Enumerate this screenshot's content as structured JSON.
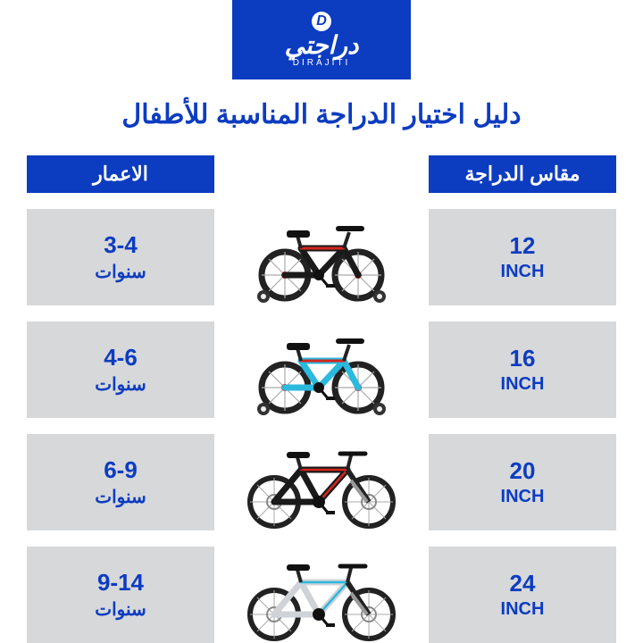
{
  "brand": {
    "logo_letter": "D",
    "name_ar": "دراجتي",
    "name_en": "DIRAJITI",
    "bg_color": "#0c3cc0"
  },
  "title": "دليل اختيار الدراجة المناسبة للأطفال",
  "headers": {
    "ages": "الاعمار",
    "size": "مقاس الدراجة"
  },
  "rows": [
    {
      "age_range": "3-4",
      "age_unit": "سنوات",
      "size_value": "12",
      "size_unit": "INCH",
      "bike": {
        "frame_color": "#1a1a1a",
        "accent_color": "#d4261d",
        "style": "training"
      }
    },
    {
      "age_range": "4-6",
      "age_unit": "سنوات",
      "size_value": "16",
      "size_unit": "INCH",
      "bike": {
        "frame_color": "#2bb9de",
        "accent_color": "#d4261d",
        "style": "training"
      }
    },
    {
      "age_range": "6-9",
      "age_unit": "سنوات",
      "size_value": "20",
      "size_unit": "INCH",
      "bike": {
        "frame_color": "#1a1a1a",
        "accent_color": "#d4261d",
        "style": "mtb"
      }
    },
    {
      "age_range": "9-14",
      "age_unit": "سنوات",
      "size_value": "24",
      "size_unit": "INCH",
      "bike": {
        "frame_color": "#cfd2d6",
        "accent_color": "#2bb9de",
        "style": "mtb"
      }
    }
  ],
  "colors": {
    "primary": "#0c3cc0",
    "cell_bg": "#d7d8da",
    "page_bg": "#ffffff",
    "tire": "#222222",
    "spoke": "#aaaaaa"
  }
}
